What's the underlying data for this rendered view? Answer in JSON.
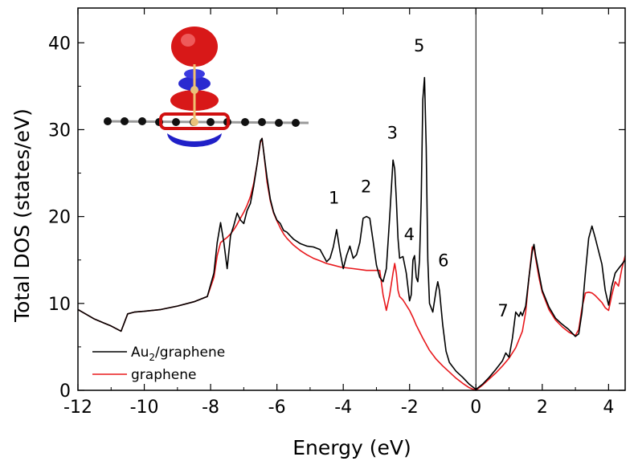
{
  "chart_data": {
    "type": "line",
    "xlabel": "Energy (eV)",
    "ylabel": "Total DOS (states/eV)",
    "xlim": [
      -12,
      4.5
    ],
    "ylim": [
      0,
      44
    ],
    "xticks": [
      -12,
      -10,
      -8,
      -6,
      -4,
      -2,
      0,
      2,
      4
    ],
    "yticks": [
      0,
      10,
      20,
      30,
      40
    ],
    "vline_at": 0,
    "grid": false,
    "legend_position": "bottom-left",
    "series": [
      {
        "name": "Au2/graphene",
        "name_main": "Au",
        "name_sub": "2",
        "name_rest": "/graphene",
        "color": "#000000",
        "x": [
          -12,
          -11.5,
          -11,
          -10.7,
          -10.5,
          -10.3,
          -10,
          -9.5,
          -9,
          -8.5,
          -8.1,
          -7.9,
          -7.8,
          -7.7,
          -7.6,
          -7.5,
          -7.4,
          -7.3,
          -7.2,
          -7.1,
          -7.0,
          -6.9,
          -6.8,
          -6.7,
          -6.6,
          -6.5,
          -6.45,
          -6.4,
          -6.3,
          -6.2,
          -6.1,
          -6.0,
          -5.9,
          -5.8,
          -5.7,
          -5.6,
          -5.5,
          -5.3,
          -5.1,
          -4.9,
          -4.7,
          -4.5,
          -4.4,
          -4.3,
          -4.2,
          -4.1,
          -4.0,
          -3.9,
          -3.8,
          -3.7,
          -3.6,
          -3.5,
          -3.4,
          -3.3,
          -3.2,
          -3.1,
          -3.0,
          -2.9,
          -2.8,
          -2.7,
          -2.6,
          -2.5,
          -2.45,
          -2.4,
          -2.35,
          -2.3,
          -2.2,
          -2.1,
          -2.0,
          -1.95,
          -1.9,
          -1.85,
          -1.8,
          -1.75,
          -1.7,
          -1.65,
          -1.6,
          -1.55,
          -1.5,
          -1.45,
          -1.4,
          -1.3,
          -1.2,
          -1.15,
          -1.1,
          -1.0,
          -0.9,
          -0.8,
          -0.6,
          -0.4,
          -0.2,
          0,
          0.2,
          0.4,
          0.6,
          0.8,
          0.9,
          1.0,
          1.1,
          1.2,
          1.3,
          1.35,
          1.4,
          1.5,
          1.6,
          1.7,
          1.75,
          1.8,
          1.9,
          2.0,
          2.2,
          2.4,
          2.6,
          2.8,
          3.0,
          3.1,
          3.2,
          3.3,
          3.4,
          3.5,
          3.6,
          3.7,
          3.8,
          3.9,
          4.0,
          4.1,
          4.2,
          4.3,
          4.4,
          4.5
        ],
        "y": [
          9.3,
          8.2,
          7.4,
          6.8,
          8.8,
          9.0,
          9.1,
          9.3,
          9.7,
          10.2,
          10.8,
          13.5,
          17.0,
          19.3,
          17.0,
          14.0,
          17.8,
          19.0,
          20.4,
          19.6,
          19.2,
          20.7,
          21.5,
          23.5,
          26.0,
          28.7,
          29.0,
          27.5,
          24.5,
          22.0,
          20.5,
          19.6,
          19.2,
          18.4,
          18.2,
          17.8,
          17.4,
          16.9,
          16.6,
          16.5,
          16.2,
          14.8,
          15.2,
          16.5,
          18.5,
          16.0,
          14.0,
          15.5,
          16.6,
          15.2,
          15.6,
          17.0,
          19.8,
          20.0,
          19.8,
          17.2,
          14.4,
          13.0,
          12.5,
          14.0,
          20.0,
          26.5,
          25.5,
          22.0,
          17.5,
          15.2,
          15.4,
          13.5,
          10.3,
          11.0,
          15.0,
          15.5,
          13.0,
          12.5,
          15.0,
          22.0,
          33.5,
          36.0,
          28.0,
          15.0,
          10.0,
          9.0,
          11.5,
          12.5,
          11.5,
          7.5,
          4.5,
          3.2,
          2.2,
          1.5,
          0.7,
          0.1,
          0.7,
          1.5,
          2.4,
          3.4,
          4.3,
          3.8,
          6.0,
          9.0,
          8.5,
          9.0,
          8.6,
          9.7,
          13.0,
          16.0,
          16.8,
          15.5,
          13.5,
          11.5,
          9.6,
          8.3,
          7.6,
          7.0,
          6.2,
          6.5,
          9.0,
          13.5,
          17.5,
          18.9,
          17.5,
          16.0,
          14.5,
          11.5,
          9.8,
          12.0,
          13.5,
          14.0,
          14.5,
          15.0
        ]
      },
      {
        "name": "graphene",
        "color": "#e8181c",
        "x": [
          -12,
          -11.5,
          -11,
          -10.7,
          -10.5,
          -10.3,
          -10,
          -9.5,
          -9,
          -8.5,
          -8.1,
          -7.9,
          -7.8,
          -7.7,
          -7.6,
          -7.5,
          -7.4,
          -7.3,
          -7.2,
          -7.1,
          -7.0,
          -6.9,
          -6.8,
          -6.7,
          -6.6,
          -6.5,
          -6.45,
          -6.4,
          -6.3,
          -6.2,
          -6.1,
          -6.0,
          -5.9,
          -5.8,
          -5.7,
          -5.6,
          -5.5,
          -5.3,
          -5.1,
          -4.9,
          -4.7,
          -4.5,
          -4.3,
          -4.1,
          -3.9,
          -3.7,
          -3.5,
          -3.3,
          -3.1,
          -2.9,
          -2.8,
          -2.7,
          -2.6,
          -2.5,
          -2.45,
          -2.4,
          -2.35,
          -2.3,
          -2.2,
          -2.1,
          -2.0,
          -1.9,
          -1.8,
          -1.6,
          -1.4,
          -1.2,
          -1.0,
          -0.8,
          -0.6,
          -0.4,
          -0.2,
          0,
          0.2,
          0.4,
          0.6,
          0.8,
          1.0,
          1.2,
          1.4,
          1.5,
          1.6,
          1.7,
          1.75,
          1.8,
          1.9,
          2.0,
          2.2,
          2.4,
          2.6,
          2.8,
          3.0,
          3.1,
          3.2,
          3.3,
          3.4,
          3.5,
          3.6,
          3.7,
          3.8,
          3.9,
          4.0,
          4.1,
          4.2,
          4.3,
          4.4,
          4.5
        ],
        "y": [
          9.3,
          8.2,
          7.4,
          6.8,
          8.8,
          9.0,
          9.1,
          9.3,
          9.7,
          10.2,
          10.8,
          13.0,
          15.5,
          17.0,
          17.3,
          17.6,
          18.0,
          18.5,
          19.1,
          19.8,
          20.5,
          21.3,
          22.3,
          23.8,
          26.0,
          28.5,
          29.0,
          27.5,
          24.0,
          21.8,
          20.4,
          19.5,
          18.7,
          18.0,
          17.5,
          17.1,
          16.7,
          16.1,
          15.6,
          15.2,
          14.9,
          14.6,
          14.4,
          14.2,
          14.1,
          14.0,
          13.9,
          13.8,
          13.8,
          13.8,
          11.0,
          9.2,
          11.0,
          13.5,
          14.6,
          13.5,
          11.5,
          10.8,
          10.4,
          9.8,
          9.2,
          8.4,
          7.5,
          6.0,
          4.6,
          3.6,
          2.8,
          2.1,
          1.4,
          0.8,
          0.3,
          0.0,
          0.6,
          1.3,
          2.0,
          2.8,
          3.7,
          4.9,
          6.8,
          9.0,
          13.0,
          16.5,
          16.4,
          15.2,
          13.0,
          11.3,
          9.3,
          8.1,
          7.3,
          6.7,
          6.3,
          7.0,
          9.5,
          11.2,
          11.3,
          11.2,
          10.9,
          10.5,
          10.1,
          9.5,
          9.2,
          11.0,
          12.5,
          12.0,
          14.0,
          15.5
        ]
      }
    ],
    "annotations": [
      {
        "text": "1",
        "x": -4.28,
        "y": 21.5
      },
      {
        "text": "2",
        "x": -3.31,
        "y": 22.8
      },
      {
        "text": "3",
        "x": -2.52,
        "y": 29.0
      },
      {
        "text": "4",
        "x": -2.01,
        "y": 17.3
      },
      {
        "text": "5",
        "x": -1.71,
        "y": 39.0
      },
      {
        "text": "6",
        "x": -0.98,
        "y": 14.3
      },
      {
        "text": "7",
        "x": 0.82,
        "y": 8.5
      }
    ]
  }
}
